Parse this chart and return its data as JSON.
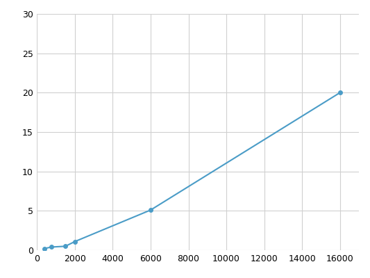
{
  "x": [
    375,
    750,
    1500,
    2000,
    6000,
    16000
  ],
  "y": [
    0.2,
    0.4,
    0.5,
    1.1,
    5.1,
    20.0
  ],
  "line_color": "#4a9cc7",
  "marker_color": "#4a9cc7",
  "marker_size": 4,
  "linewidth": 1.5,
  "xlim": [
    0,
    17000
  ],
  "ylim": [
    0,
    30
  ],
  "xticks": [
    0,
    2000,
    4000,
    6000,
    8000,
    10000,
    12000,
    14000,
    16000
  ],
  "yticks": [
    0,
    5,
    10,
    15,
    20,
    25,
    30
  ],
  "grid_color": "#d0d0d0",
  "background_color": "#ffffff",
  "tick_labelsize": 9,
  "fig_width": 5.33,
  "fig_height": 4.0,
  "dpi": 100
}
